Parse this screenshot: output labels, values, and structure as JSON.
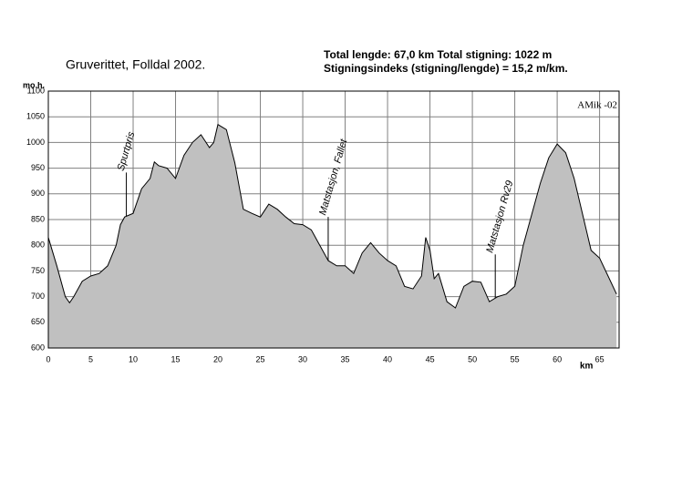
{
  "chart_data": {
    "type": "area",
    "title": "Gruverittet, Folldal 2002.",
    "subtitle": [
      "Total lengde: 67,0  km   Total stigning:  1022 m",
      "Stigningsindeks (stigning/lengde) = 15,2 m/km."
    ],
    "credit": "AMik -02",
    "y_label": "mo.h.",
    "x_label": "km",
    "x": [
      0,
      1,
      2,
      2.5,
      3,
      4,
      5,
      6,
      7,
      8,
      8.5,
      9,
      10,
      11,
      12,
      12.5,
      13,
      14,
      15,
      16,
      17,
      18,
      19,
      19.5,
      20,
      21,
      22,
      23,
      24,
      25,
      26,
      27,
      28,
      29,
      30,
      31,
      32,
      33,
      34,
      35,
      36,
      37,
      38,
      39,
      40,
      41,
      42,
      43,
      44,
      44.5,
      45,
      45.5,
      46,
      47,
      48,
      49,
      50,
      51,
      52,
      53,
      54,
      55,
      56,
      57,
      58,
      59,
      60,
      61,
      62,
      63,
      64,
      65,
      66,
      67
    ],
    "values": [
      815,
      760,
      700,
      688,
      700,
      730,
      740,
      745,
      760,
      800,
      840,
      855,
      862,
      910,
      930,
      962,
      955,
      950,
      930,
      975,
      1000,
      1015,
      990,
      1000,
      1035,
      1025,
      960,
      870,
      862,
      855,
      880,
      870,
      855,
      842,
      840,
      830,
      800,
      770,
      760,
      760,
      745,
      785,
      805,
      785,
      770,
      760,
      720,
      715,
      740,
      815,
      790,
      735,
      745,
      690,
      678,
      720,
      730,
      728,
      690,
      700,
      705,
      720,
      800,
      860,
      920,
      970,
      997,
      980,
      930,
      860,
      790,
      775,
      740,
      705
    ],
    "color": "#c0c0c0",
    "xlim": [
      0,
      67.3
    ],
    "ylim": [
      600,
      1100
    ],
    "xticks": [
      0,
      5,
      10,
      15,
      20,
      25,
      30,
      35,
      40,
      45,
      50,
      55,
      60,
      65
    ],
    "yticks": [
      600,
      650,
      700,
      750,
      800,
      850,
      900,
      950,
      1000,
      1050,
      1100
    ],
    "grid": true,
    "annotations": [
      {
        "text": "Spurtpris",
        "x": 9.2
      },
      {
        "text": "Matstasjon, Fallet",
        "x": 33
      },
      {
        "text": "Matstasjon Rv29",
        "x": 52.7
      }
    ]
  }
}
